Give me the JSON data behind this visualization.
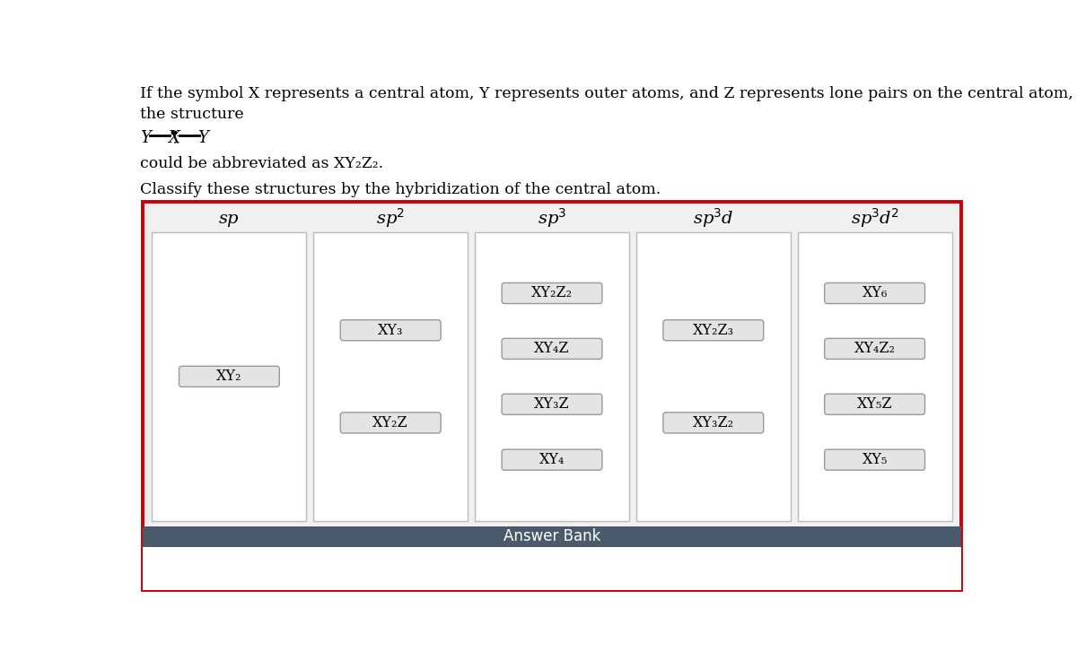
{
  "title_text_line1": "If the symbol X represents a central atom, Y represents outer atoms, and Z represents lone pairs on the central atom,",
  "title_text_line2": "the structure",
  "title_text_line4": "could be abbreviated as XY₂Z₂.",
  "title_text_line5": "Classify these structures by the hybridization of the central atom.",
  "columns": [
    "sp",
    "sp$^2$",
    "sp$^3$",
    "sp$^3$d",
    "sp$^3$d$^2$"
  ],
  "column_labels_display": [
    "sp",
    "sp²",
    "sp³",
    "sp³d",
    "sp³d²"
  ],
  "column_items": {
    "sp": [
      "XY₂"
    ],
    "sp$^2$": [
      "XY₃",
      "XY₂Z"
    ],
    "sp$^3$": [
      "XY₂Z₂",
      "XY₄Z",
      "XY₃Z",
      "XY₄"
    ],
    "sp$^3$d": [
      "XY₂Z₃",
      "XY₃Z₂"
    ],
    "sp$^3$d$^2$": [
      "XY₆",
      "XY₄Z₂",
      "XY₅Z",
      "XY₅"
    ]
  },
  "answer_bank_label": "Answer Bank",
  "outer_border_color": "#cc0000",
  "inner_bg_color": "#f0f0f0",
  "column_border_color": "#bbbbbb",
  "item_bg_color": "#e4e4e4",
  "item_border_color": "#999999",
  "answer_bank_bg": "#4a5a6a",
  "answer_bank_text_color": "#ffffff",
  "bg_color": "#ffffff"
}
